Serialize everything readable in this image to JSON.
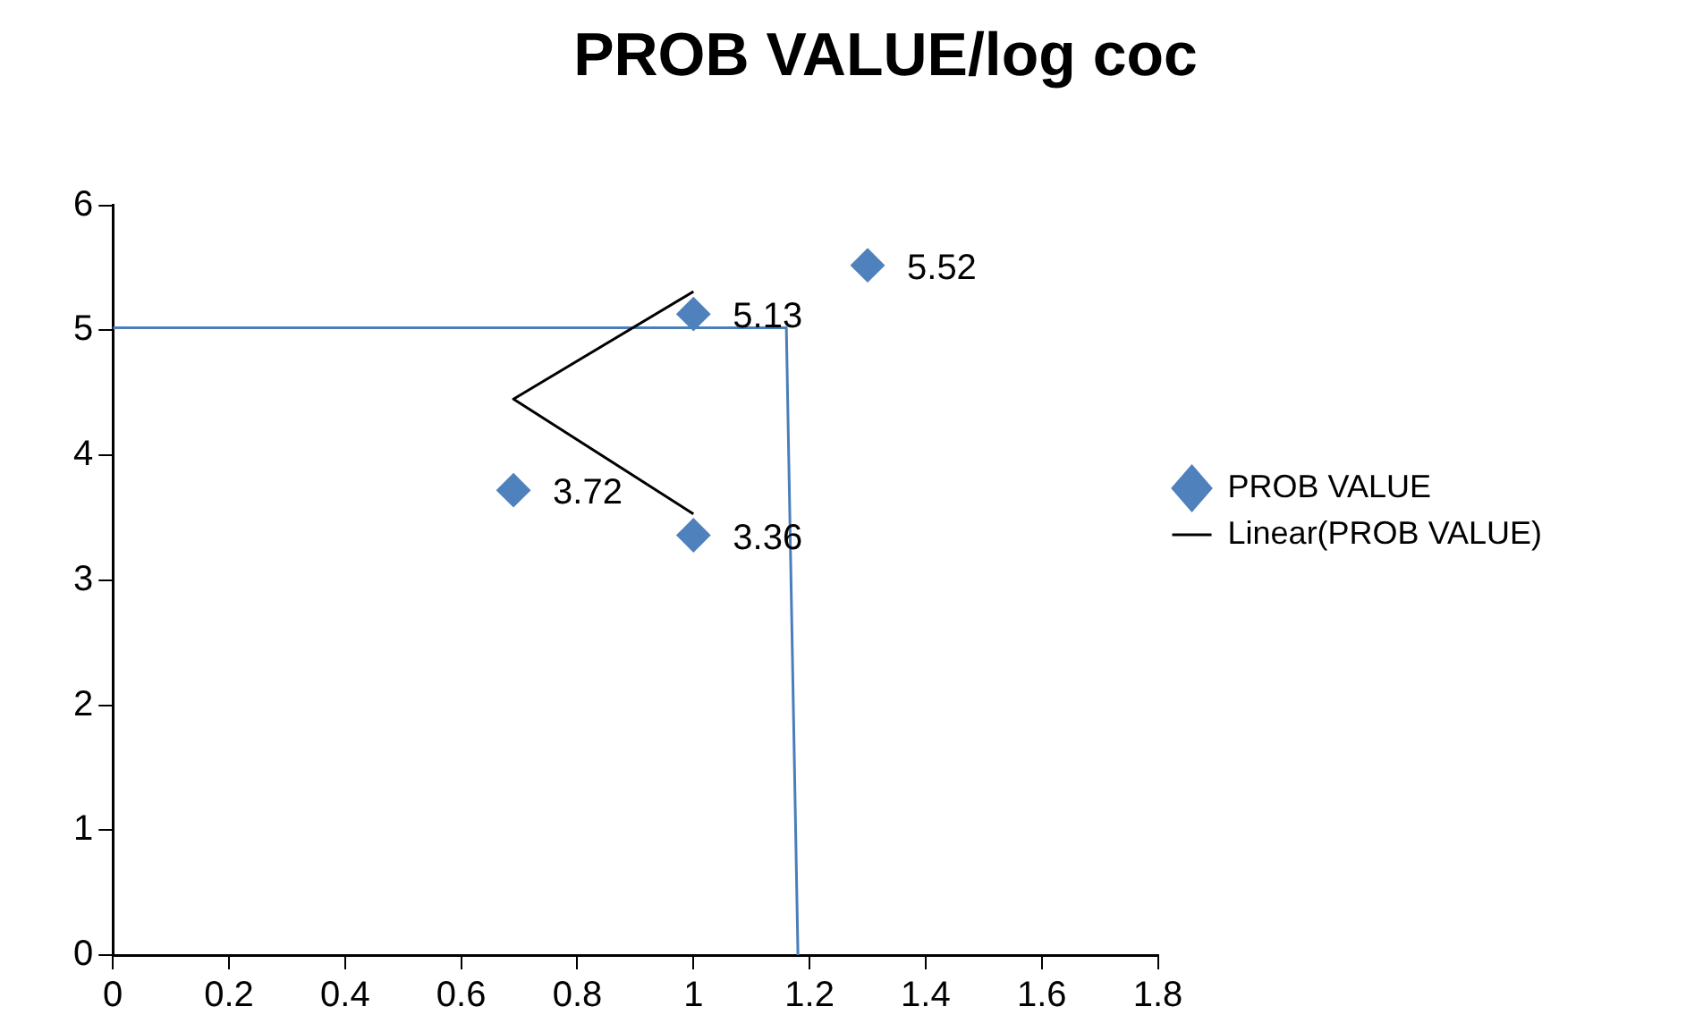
{
  "chart_data": {
    "type": "scatter",
    "title": "PROB VALUE/log coc",
    "x": [
      0.69,
      1,
      1,
      1.3
    ],
    "xlim": [
      0,
      1.8
    ],
    "xticks": [
      0,
      0.2,
      0.4,
      0.6,
      0.8,
      1,
      1.2,
      1.4,
      1.6,
      1.8
    ],
    "ylim": [
      0,
      6
    ],
    "yticks": [
      0,
      1,
      2,
      3,
      4,
      5,
      6
    ],
    "grid": false,
    "legend": "right",
    "marker": "diamond",
    "series": [
      {
        "name": "PROB VALUE",
        "color": "#4f81bd",
        "values": [
          3.72,
          3.36,
          5.13,
          5.52
        ],
        "value_labels": [
          "3.72",
          "3.36",
          "5.13",
          "5.52"
        ]
      },
      {
        "name": "Linear(PROB VALUE)",
        "type": "line",
        "marker": "none",
        "color": "#000000",
        "x": [
          1,
          0.69,
          1
        ],
        "values": [
          5.31,
          4.45,
          3.53
        ]
      },
      {
        "type": "line",
        "marker": "none",
        "color": "#4a7ebb",
        "x": [
          0,
          1.16,
          1.18
        ],
        "values": [
          5.02,
          5.02,
          0
        ]
      }
    ]
  }
}
